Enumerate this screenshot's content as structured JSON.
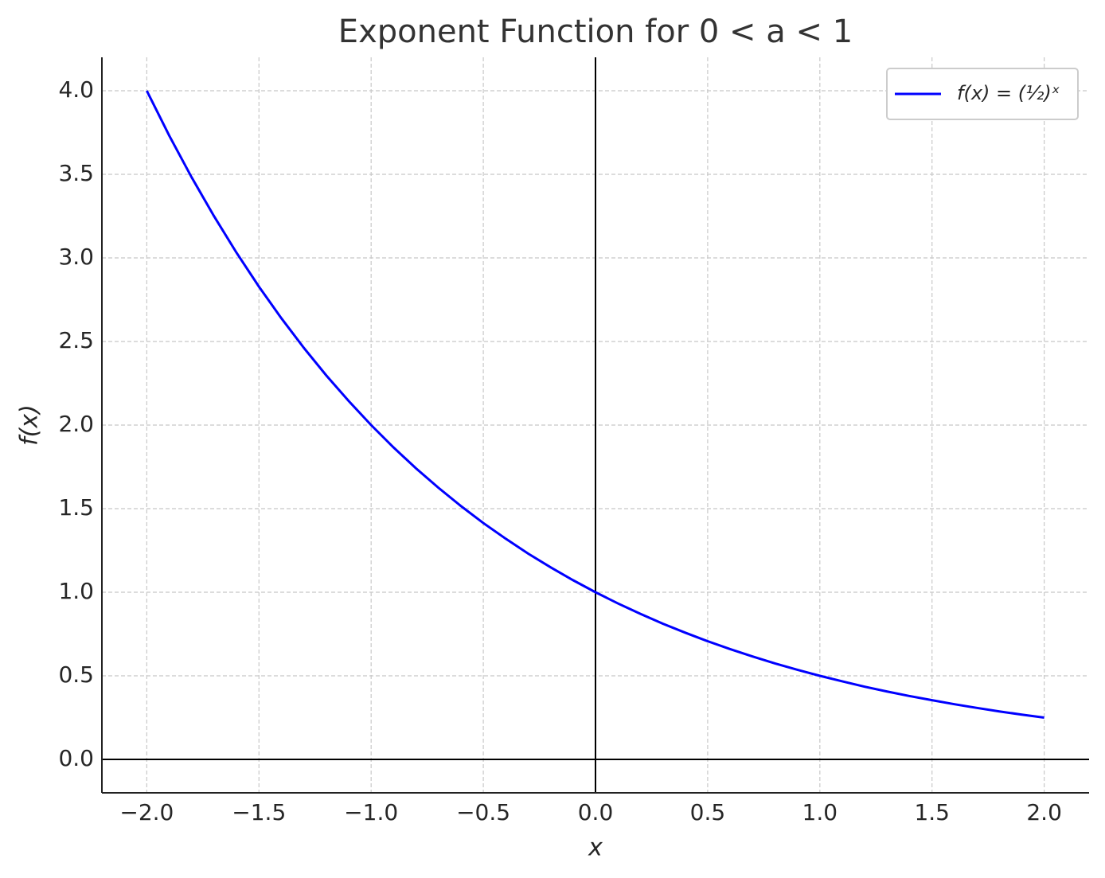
{
  "chart_data": {
    "type": "line",
    "title": "Exponent Function for 0 < a < 1",
    "xlabel": "x",
    "ylabel": "f(x)",
    "x": [
      -2,
      -1.9,
      -1.8,
      -1.7,
      -1.6,
      -1.5,
      -1.4,
      -1.3,
      -1.2,
      -1.1,
      -1,
      -0.9,
      -0.8,
      -0.7,
      -0.6,
      -0.5,
      -0.4,
      -0.3,
      -0.2,
      -0.1,
      0,
      0.1,
      0.2,
      0.3,
      0.4,
      0.5,
      0.6,
      0.7,
      0.8,
      0.9,
      1,
      1.1,
      1.2,
      1.3,
      1.4,
      1.5,
      1.6,
      1.7,
      1.8,
      1.9,
      2
    ],
    "series": [
      {
        "name": "f(x) = (½)ˣ",
        "color": "#0000ff",
        "values": [
          4,
          3.732,
          3.482,
          3.249,
          3.031,
          2.828,
          2.639,
          2.462,
          2.297,
          2.144,
          2,
          1.866,
          1.741,
          1.625,
          1.516,
          1.414,
          1.32,
          1.231,
          1.149,
          1.072,
          1,
          0.933,
          0.871,
          0.812,
          0.758,
          0.707,
          0.66,
          0.616,
          0.574,
          0.536,
          0.5,
          0.467,
          0.435,
          0.406,
          0.379,
          0.354,
          0.33,
          0.308,
          0.287,
          0.268,
          0.25
        ]
      }
    ],
    "xlim": [
      -2.2,
      2.2
    ],
    "ylim": [
      -0.2,
      4.2
    ],
    "xticks": [
      {
        "value": -2,
        "label": "−2.0"
      },
      {
        "value": -1.5,
        "label": "−1.5"
      },
      {
        "value": -1,
        "label": "−1.0"
      },
      {
        "value": -0.5,
        "label": "−0.5"
      },
      {
        "value": 0,
        "label": "0.0"
      },
      {
        "value": 0.5,
        "label": "0.5"
      },
      {
        "value": 1,
        "label": "1.0"
      },
      {
        "value": 1.5,
        "label": "1.5"
      },
      {
        "value": 2,
        "label": "2.0"
      }
    ],
    "yticks": [
      {
        "value": 0,
        "label": "0.0"
      },
      {
        "value": 0.5,
        "label": "0.5"
      },
      {
        "value": 1,
        "label": "1.0"
      },
      {
        "value": 1.5,
        "label": "1.5"
      },
      {
        "value": 2,
        "label": "2.0"
      },
      {
        "value": 2.5,
        "label": "2.5"
      },
      {
        "value": 3,
        "label": "3.0"
      },
      {
        "value": 3.5,
        "label": "3.5"
      },
      {
        "value": 4,
        "label": "4.0"
      }
    ],
    "grid": true,
    "zero_lines": true,
    "legend": "upper right"
  }
}
